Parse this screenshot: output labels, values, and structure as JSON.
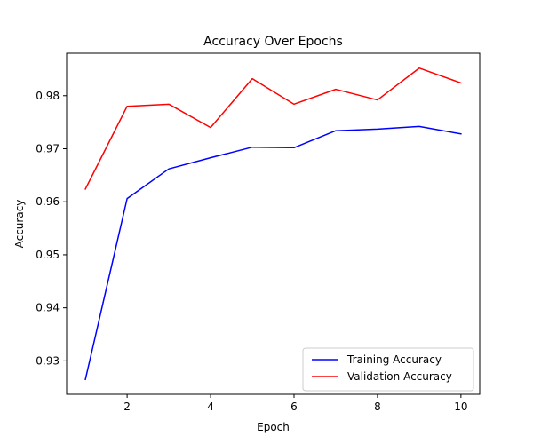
{
  "chart_data": {
    "type": "line",
    "title": "Accuracy Over Epochs",
    "xlabel": "Epoch",
    "ylabel": "Accuracy",
    "x": [
      1,
      2,
      3,
      4,
      5,
      6,
      7,
      8,
      9,
      10
    ],
    "xlim": [
      0.55,
      10.45
    ],
    "ylim": [
      0.9237,
      0.988
    ],
    "xticks": [
      2,
      4,
      6,
      8,
      10
    ],
    "xtick_labels": [
      "2",
      "4",
      "6",
      "8",
      "10"
    ],
    "yticks": [
      0.93,
      0.94,
      0.95,
      0.96,
      0.97,
      0.98
    ],
    "ytick_labels": [
      "0.93",
      "0.94",
      "0.95",
      "0.96",
      "0.97",
      "0.98"
    ],
    "grid": false,
    "legend_position": "lower-right",
    "series": [
      {
        "name": "Training Accuracy",
        "color": "#0000ff",
        "values": [
          0.9265,
          0.9606,
          0.9662,
          0.9683,
          0.9703,
          0.9702,
          0.9734,
          0.9737,
          0.9742,
          0.9728
        ]
      },
      {
        "name": "Validation Accuracy",
        "color": "#ff0000",
        "values": [
          0.9624,
          0.978,
          0.9784,
          0.974,
          0.9832,
          0.9784,
          0.9812,
          0.9792,
          0.9852,
          0.9824
        ]
      }
    ]
  }
}
